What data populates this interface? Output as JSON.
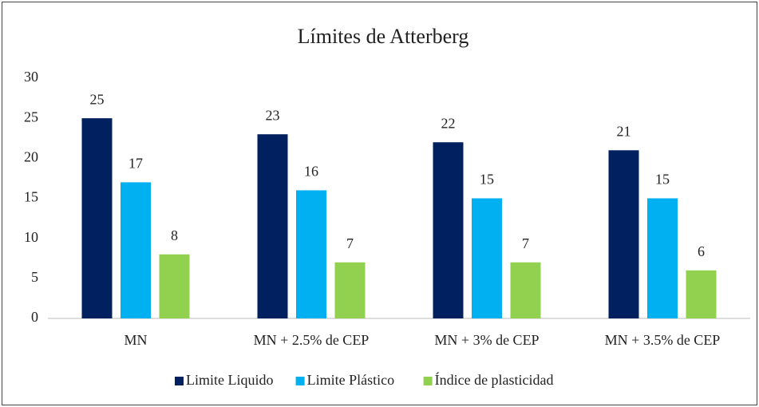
{
  "chart_data": {
    "type": "bar",
    "title": "Límites de Atterberg",
    "categories": [
      "MN",
      "MN + 2.5% de CEP",
      "MN + 3% de CEP",
      "MN + 3.5% de CEP"
    ],
    "series": [
      {
        "name": "Limite Liquido",
        "color": "#002060",
        "values": [
          25,
          23,
          22,
          21
        ]
      },
      {
        "name": "Limite Plástico",
        "color": "#00b0f0",
        "values": [
          17,
          16,
          15,
          15
        ]
      },
      {
        "name": "Índice de plasticidad",
        "color": "#92d050",
        "values": [
          8,
          7,
          7,
          6
        ]
      }
    ],
    "ylim": [
      0,
      30
    ],
    "yticks": [
      0,
      5,
      10,
      15,
      20,
      25,
      30
    ],
    "grid": false,
    "legend": "bottom"
  }
}
